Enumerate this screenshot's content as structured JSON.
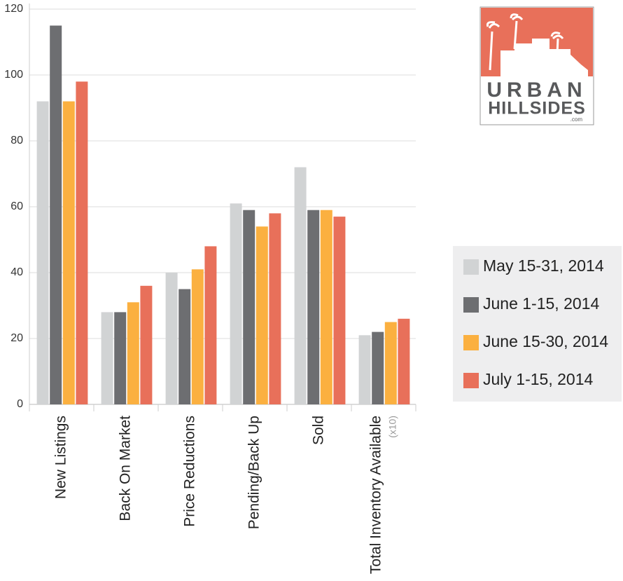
{
  "chart_data": {
    "type": "bar",
    "categories": [
      "New Listings",
      "Back On Market",
      "Price Reductions",
      "Pending/Back Up",
      "Sold",
      "Total Inventory Available"
    ],
    "annotation": "(x10)",
    "series": [
      {
        "name": "May 15-31, 2014",
        "color": "#d1d3d4",
        "values": [
          92,
          28,
          40,
          61,
          72,
          21
        ]
      },
      {
        "name": "June 1-15, 2014",
        "color": "#6d6e71",
        "values": [
          115,
          28,
          35,
          59,
          59,
          22
        ]
      },
      {
        "name": "June 15-30, 2014",
        "color": "#fbb040",
        "values": [
          92,
          31,
          41,
          54,
          59,
          25
        ]
      },
      {
        "name": "July 1-15, 2014",
        "color": "#e8705a",
        "values": [
          98,
          36,
          48,
          58,
          57,
          26
        ]
      }
    ],
    "ylim": [
      0,
      120
    ],
    "yticks": [
      0,
      20,
      40,
      60,
      80,
      100,
      120
    ],
    "grid": true,
    "legend": "right"
  },
  "logo": {
    "line1": "URBAN",
    "line2": "HILLSIDES",
    "line3": ".com"
  }
}
